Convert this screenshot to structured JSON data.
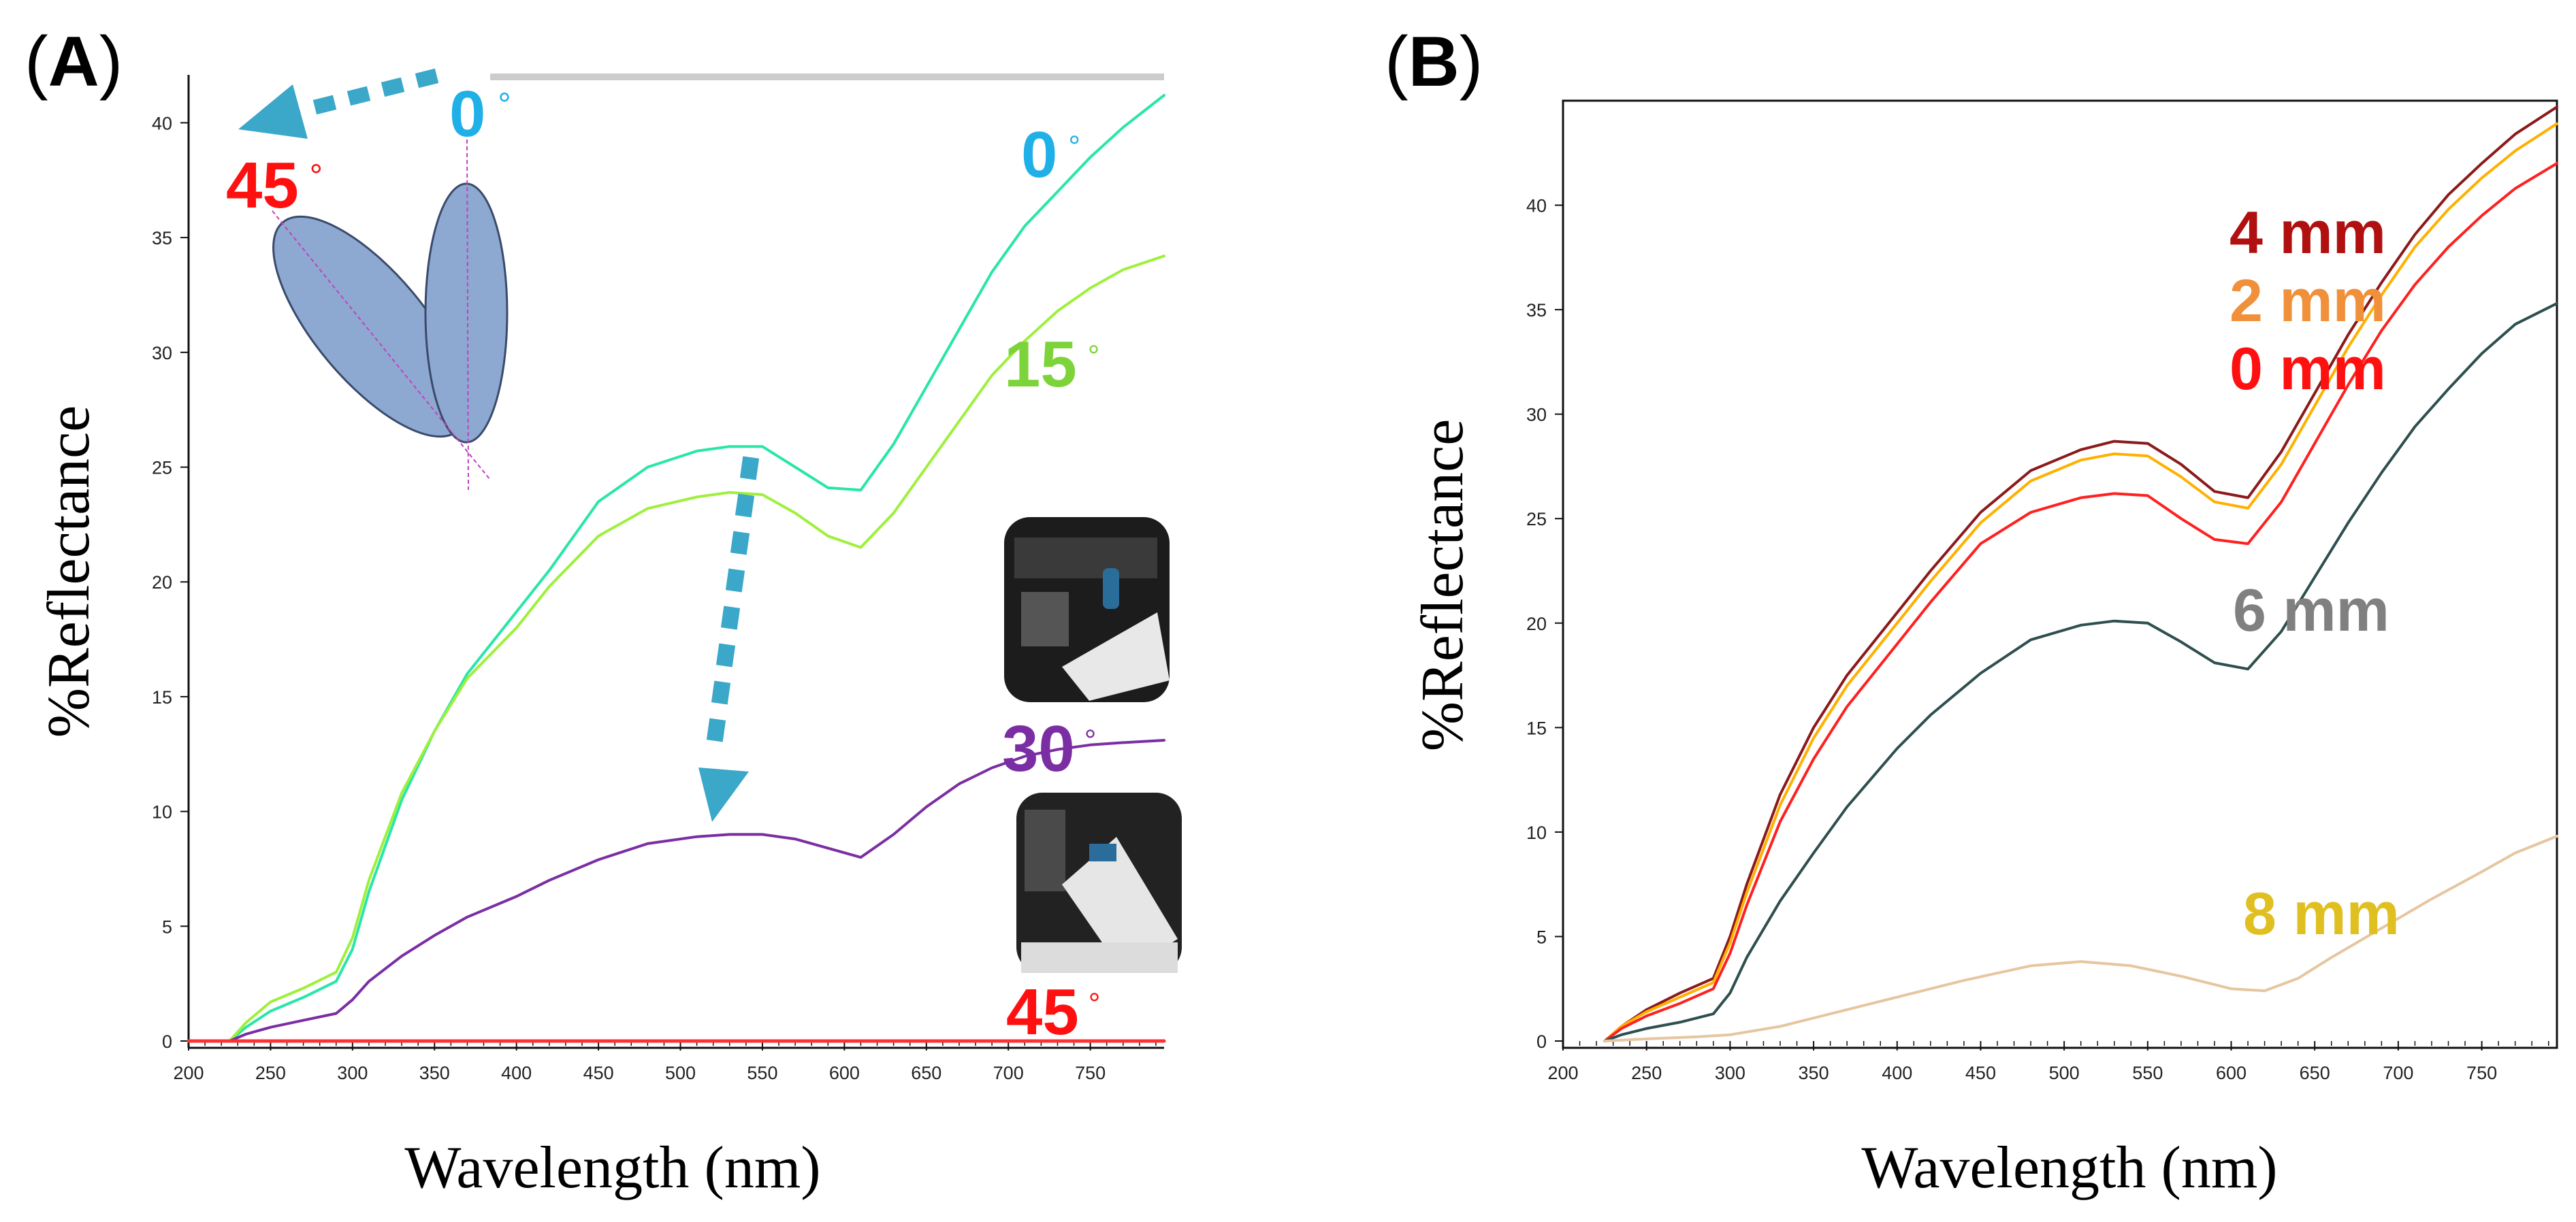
{
  "chart_data": [
    {
      "panel": "A",
      "type": "line",
      "xlabel": "Wavelength (nm)",
      "ylabel": "%Reflectance",
      "xlim": [
        200,
        795
      ],
      "ylim": [
        0,
        42
      ],
      "xticks": [
        200,
        250,
        300,
        350,
        400,
        450,
        500,
        550,
        600,
        650,
        700,
        750
      ],
      "yticks": [
        0,
        5,
        10,
        15,
        20,
        25,
        30,
        35,
        40
      ],
      "series": [
        {
          "name": "0 °",
          "color": "#29e6a8",
          "x": [
            225,
            235,
            250,
            270,
            290,
            300,
            310,
            330,
            350,
            370,
            400,
            420,
            450,
            480,
            510,
            530,
            550,
            570,
            590,
            610,
            630,
            650,
            670,
            690,
            710,
            730,
            750,
            770,
            795
          ],
          "y": [
            0.0,
            0.6,
            1.3,
            1.9,
            2.6,
            4.0,
            6.5,
            10.5,
            13.5,
            16.0,
            18.7,
            20.5,
            23.5,
            25.0,
            25.7,
            25.9,
            25.9,
            25.0,
            24.1,
            24.0,
            26.0,
            28.5,
            31.0,
            33.5,
            35.5,
            37.0,
            38.5,
            39.8,
            41.2
          ]
        },
        {
          "name": "15 °",
          "color": "#9ef03c",
          "x": [
            225,
            235,
            250,
            270,
            290,
            300,
            310,
            330,
            350,
            370,
            400,
            420,
            450,
            480,
            510,
            530,
            550,
            570,
            590,
            610,
            630,
            650,
            670,
            690,
            710,
            730,
            750,
            770,
            795
          ],
          "y": [
            0.0,
            0.8,
            1.7,
            2.3,
            3.0,
            4.5,
            7.0,
            10.8,
            13.5,
            15.8,
            18.0,
            19.8,
            22.0,
            23.2,
            23.7,
            23.9,
            23.8,
            23.0,
            22.0,
            21.5,
            23.0,
            25.0,
            27.0,
            29.0,
            30.5,
            31.8,
            32.8,
            33.6,
            34.2
          ]
        },
        {
          "name": "30 °",
          "color": "#7b2ea3",
          "x": [
            225,
            235,
            250,
            270,
            290,
            300,
            310,
            330,
            350,
            370,
            400,
            420,
            450,
            480,
            510,
            530,
            550,
            570,
            590,
            610,
            630,
            650,
            670,
            690,
            710,
            730,
            750,
            770,
            795
          ],
          "y": [
            0.0,
            0.3,
            0.6,
            0.9,
            1.2,
            1.8,
            2.6,
            3.7,
            4.6,
            5.4,
            6.3,
            7.0,
            7.9,
            8.6,
            8.9,
            9.0,
            9.0,
            8.8,
            8.4,
            8.0,
            9.0,
            10.2,
            11.2,
            11.9,
            12.4,
            12.7,
            12.9,
            13.0,
            13.1
          ]
        },
        {
          "name": "45 °",
          "color": "#ff3030",
          "x": [
            200,
            795
          ],
          "y": [
            0.0,
            0.0
          ]
        }
      ],
      "annotations": {
        "label_0": "0",
        "label_15": "15",
        "label_30": "30",
        "label_45": "45",
        "inset_0": "0",
        "inset_45": "45",
        "degree": "°"
      }
    },
    {
      "panel": "B",
      "type": "line",
      "xlabel": "Wavelength (nm)",
      "ylabel": "%Reflectance",
      "xlim": [
        200,
        795
      ],
      "ylim": [
        0,
        45
      ],
      "xticks": [
        200,
        250,
        300,
        350,
        400,
        450,
        500,
        550,
        600,
        650,
        700,
        750
      ],
      "yticks": [
        0,
        5,
        10,
        15,
        20,
        25,
        30,
        35,
        40
      ],
      "series": [
        {
          "name": "4 mm",
          "color": "#8b1a1a",
          "x": [
            225,
            235,
            250,
            270,
            290,
            300,
            310,
            330,
            350,
            370,
            400,
            420,
            450,
            480,
            510,
            530,
            550,
            570,
            590,
            610,
            630,
            650,
            670,
            690,
            710,
            730,
            750,
            770,
            795
          ],
          "y": [
            0.0,
            0.7,
            1.5,
            2.3,
            3.0,
            5.0,
            7.5,
            11.8,
            15.0,
            17.5,
            20.5,
            22.5,
            25.3,
            27.3,
            28.3,
            28.7,
            28.6,
            27.6,
            26.3,
            26.0,
            28.2,
            31.0,
            33.8,
            36.3,
            38.6,
            40.5,
            42.0,
            43.4,
            44.7
          ]
        },
        {
          "name": "2 mm",
          "color": "#ffb000",
          "x": [
            225,
            235,
            250,
            270,
            290,
            300,
            310,
            330,
            350,
            370,
            400,
            420,
            450,
            480,
            510,
            530,
            550,
            570,
            590,
            610,
            630,
            650,
            670,
            690,
            710,
            730,
            750,
            770,
            795
          ],
          "y": [
            0.0,
            0.7,
            1.4,
            2.1,
            2.8,
            4.7,
            7.1,
            11.3,
            14.5,
            17.0,
            20.0,
            22.0,
            24.8,
            26.8,
            27.8,
            28.1,
            28.0,
            27.0,
            25.8,
            25.5,
            27.6,
            30.4,
            33.2,
            35.7,
            38.0,
            39.8,
            41.3,
            42.6,
            43.9
          ]
        },
        {
          "name": "0 mm",
          "color": "#ff2020",
          "x": [
            225,
            235,
            250,
            270,
            290,
            300,
            310,
            330,
            350,
            370,
            400,
            420,
            450,
            480,
            510,
            530,
            550,
            570,
            590,
            610,
            630,
            650,
            670,
            690,
            710,
            730,
            750,
            770,
            795
          ],
          "y": [
            0.0,
            0.6,
            1.2,
            1.8,
            2.5,
            4.2,
            6.5,
            10.5,
            13.5,
            16.0,
            19.0,
            21.0,
            23.8,
            25.3,
            26.0,
            26.2,
            26.1,
            25.0,
            24.0,
            23.8,
            25.8,
            28.6,
            31.4,
            34.0,
            36.2,
            38.0,
            39.5,
            40.8,
            42.0
          ]
        },
        {
          "name": "6 mm",
          "color": "#2f4f4f",
          "x": [
            225,
            235,
            250,
            270,
            290,
            300,
            310,
            330,
            350,
            370,
            400,
            420,
            450,
            480,
            510,
            530,
            550,
            570,
            590,
            610,
            630,
            650,
            670,
            690,
            710,
            730,
            750,
            770,
            795
          ],
          "y": [
            0.0,
            0.3,
            0.6,
            0.9,
            1.3,
            2.3,
            4.0,
            6.7,
            9.0,
            11.2,
            14.0,
            15.6,
            17.6,
            19.2,
            19.9,
            20.1,
            20.0,
            19.1,
            18.1,
            17.8,
            19.6,
            22.2,
            24.8,
            27.2,
            29.4,
            31.2,
            32.9,
            34.3,
            35.3
          ]
        },
        {
          "name": "8 mm",
          "color": "#e6c6a0",
          "x": [
            225,
            250,
            280,
            300,
            330,
            360,
            400,
            440,
            480,
            510,
            540,
            570,
            600,
            620,
            640,
            660,
            690,
            720,
            750,
            770,
            795
          ],
          "y": [
            0.0,
            0.1,
            0.2,
            0.3,
            0.7,
            1.3,
            2.1,
            2.9,
            3.6,
            3.8,
            3.6,
            3.1,
            2.5,
            2.4,
            3.0,
            4.0,
            5.4,
            6.8,
            8.1,
            9.0,
            9.8
          ]
        }
      ],
      "annotations": {
        "label_4": "4 mm",
        "label_2": "2 mm",
        "label_0": "0 mm",
        "label_6": "6 mm",
        "label_8": "8 mm"
      }
    }
  ],
  "panels": {
    "a_open": "(",
    "a_letter": "A",
    "a_close": ")",
    "b_open": "(",
    "b_letter": "B",
    "b_close": ")"
  },
  "colors": {
    "arrow": "#3ba7c9",
    "ellipse_fill": "#8ea9d1",
    "ellipse_stroke": "#3a4a6a",
    "ellipse_axis": "#c040c0",
    "deg0": "#1fb0e8",
    "deg15": "#7dd33a",
    "deg30": "#7b2ea3",
    "deg45": "#ff1010",
    "lbl_4mm": "#b01010",
    "lbl_2mm": "#f0903a",
    "lbl_0mm": "#ff1010",
    "lbl_6mm": "#808080",
    "lbl_8mm": "#e0c020"
  }
}
